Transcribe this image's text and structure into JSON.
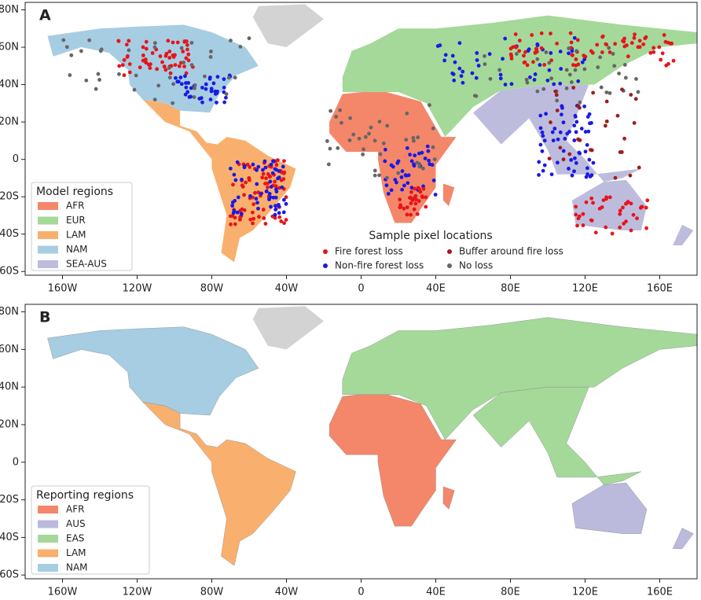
{
  "panels": [
    {
      "label": "A",
      "legend": {
        "title": "Model regions",
        "items": [
          {
            "name": "AFR",
            "color": "#f4876a"
          },
          {
            "name": "EUR",
            "color": "#a5d99a"
          },
          {
            "name": "LAM",
            "color": "#f9b06e"
          },
          {
            "name": "NAM",
            "color": "#a7cde3"
          },
          {
            "name": "SEA-AUS",
            "color": "#bdbcdd"
          }
        ]
      },
      "sample_legend": {
        "title": "Sample pixel locations",
        "items": [
          {
            "name": "Fire forest loss",
            "color": "#e8141b"
          },
          {
            "name": "Non-fire forest loss",
            "color": "#1a1ae6"
          },
          {
            "name": "Buffer around fire loss",
            "color": "#a01c1c"
          },
          {
            "name": "No loss",
            "color": "#666666"
          }
        ]
      }
    },
    {
      "label": "B",
      "legend": {
        "title": "Reporting regions",
        "items": [
          {
            "name": "AFR",
            "color": "#f4876a"
          },
          {
            "name": "AUS",
            "color": "#bbbadc"
          },
          {
            "name": "EAS",
            "color": "#a5d99a"
          },
          {
            "name": "LAM",
            "color": "#f9b06e"
          },
          {
            "name": "NAM",
            "color": "#a6cde2"
          }
        ]
      }
    }
  ],
  "axes": {
    "xlim": [
      -180,
      180
    ],
    "ylim": [
      -62,
      84
    ],
    "xticks": [
      {
        "value": -160,
        "label": "160W"
      },
      {
        "value": -120,
        "label": "120W"
      },
      {
        "value": -80,
        "label": "80W"
      },
      {
        "value": -40,
        "label": "40W"
      },
      0,
      {
        "value": 40,
        "label": "40E"
      },
      {
        "value": 80,
        "label": "80E"
      },
      {
        "value": 120,
        "label": "120E"
      },
      {
        "value": 160,
        "label": "160E"
      }
    ],
    "yticks": [
      {
        "value": 80,
        "label": "80N"
      },
      {
        "value": 60,
        "label": "60N"
      },
      {
        "value": 40,
        "label": "40N"
      },
      {
        "value": 20,
        "label": "20N"
      },
      0,
      {
        "value": -20,
        "label": "20S"
      },
      {
        "value": -40,
        "label": "40S"
      },
      {
        "value": -60,
        "label": "60S"
      }
    ]
  }
}
